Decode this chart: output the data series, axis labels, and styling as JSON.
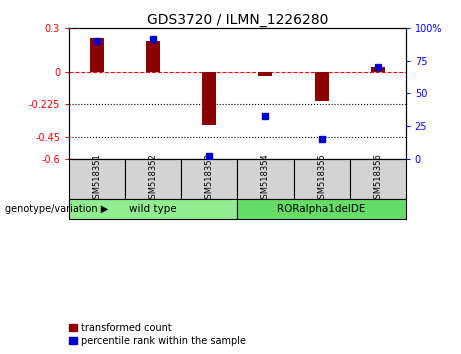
{
  "title": "GDS3720 / ILMN_1226280",
  "samples": [
    "GSM518351",
    "GSM518352",
    "GSM518353",
    "GSM518354",
    "GSM518355",
    "GSM518356"
  ],
  "transformed_count": [
    0.23,
    0.21,
    -0.37,
    -0.03,
    -0.2,
    0.03
  ],
  "percentile_rank": [
    90,
    92,
    2,
    33,
    15,
    70
  ],
  "ylim_left": [
    -0.6,
    0.3
  ],
  "ylim_right": [
    0,
    100
  ],
  "yticks_left": [
    0.3,
    0.0,
    -0.225,
    -0.45,
    -0.6
  ],
  "ytick_labels_left": [
    "0.3",
    "0",
    "-0.225",
    "-0.45",
    "-0.6"
  ],
  "yticks_right": [
    100,
    75,
    50,
    25,
    0
  ],
  "ytick_labels_right": [
    "100%",
    "75",
    "50",
    "25",
    "0"
  ],
  "groups": [
    {
      "label": "wild type",
      "indices": [
        0,
        1,
        2
      ],
      "color": "#90EE90"
    },
    {
      "label": "RORalpha1delDE",
      "indices": [
        3,
        4,
        5
      ],
      "color": "#66DD66"
    }
  ],
  "group_label": "genotype/variation",
  "bar_color": "#8B0000",
  "dot_color": "#0000CD",
  "legend_items": [
    "transformed count",
    "percentile rank within the sample"
  ],
  "bar_width": 0.25,
  "background_color": "#ffffff"
}
